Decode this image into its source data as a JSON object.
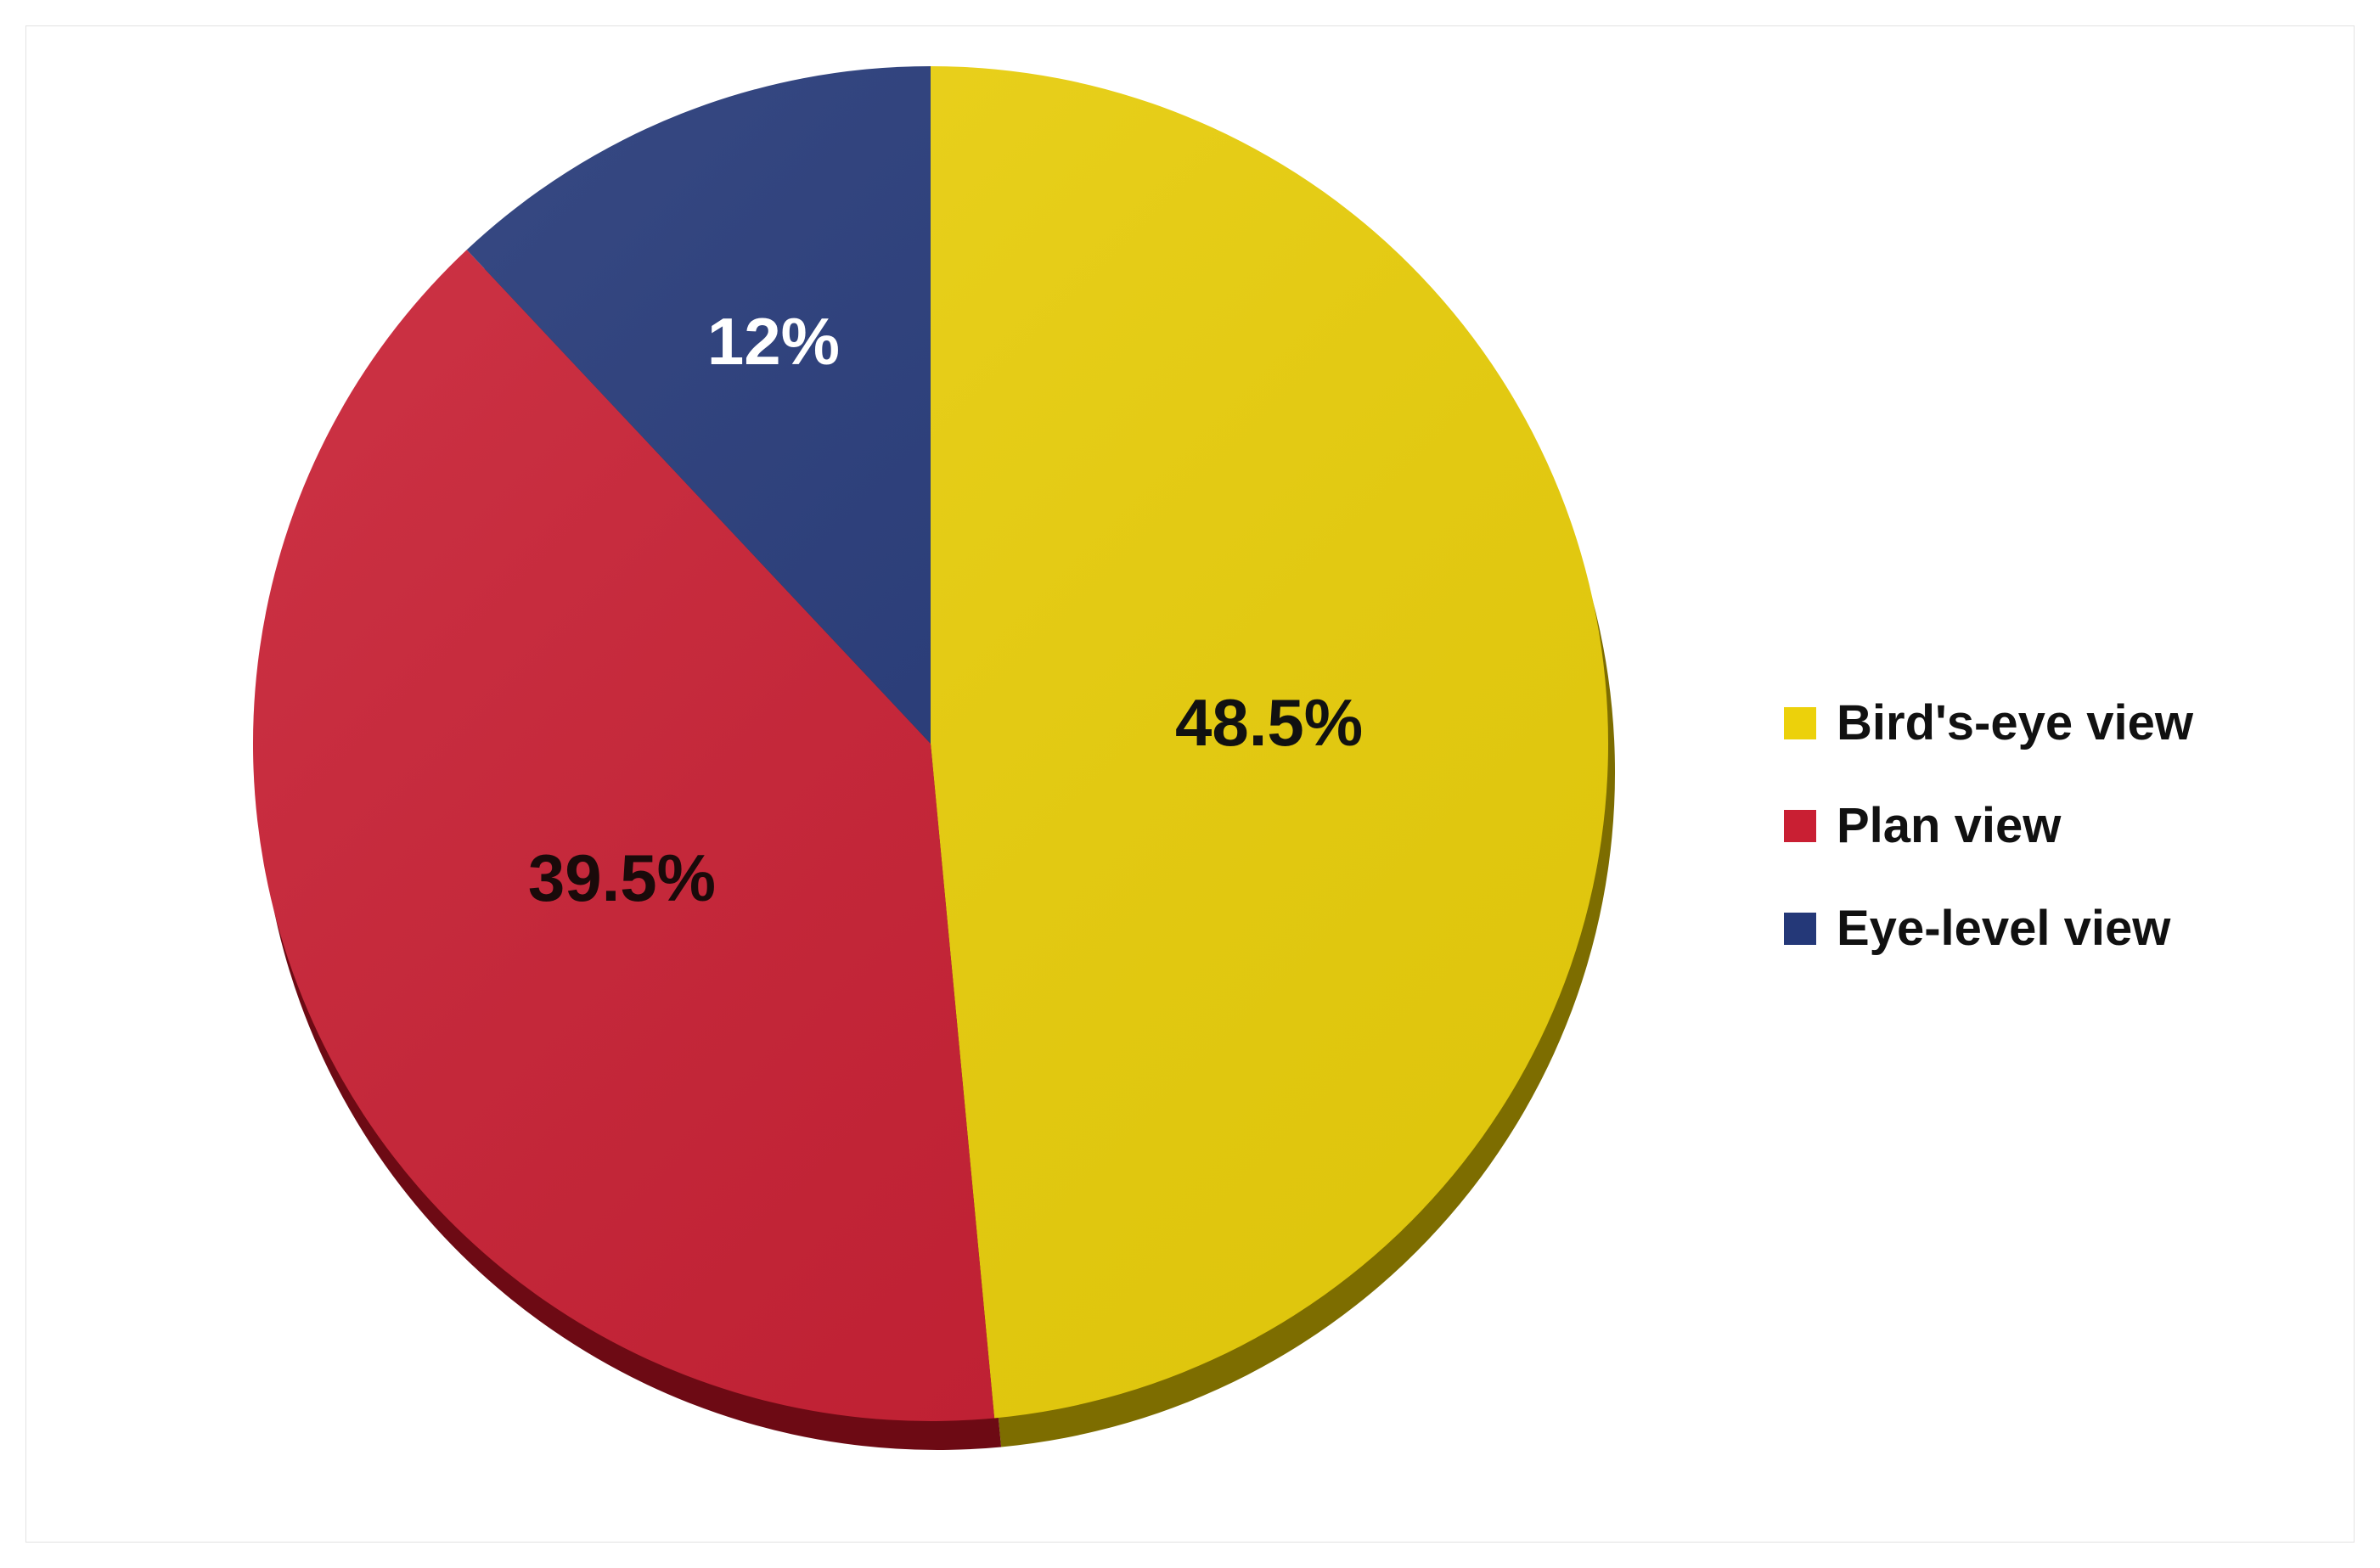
{
  "chart_data": {
    "type": "pie",
    "categories": [
      "Bird's-eye view",
      "Plan view",
      "Eye-level view"
    ],
    "values": [
      48.5,
      39.5,
      12
    ],
    "data_labels": [
      "48.5%",
      "39.5%",
      "12%"
    ],
    "colors": [
      "#ecd10b",
      "#c91f33",
      "#243878"
    ],
    "shadow_colors": [
      "#7d6d00",
      "#6d0a14",
      "#101c44"
    ],
    "label_colors": [
      "#111111",
      "#1a0a0a",
      "#ffffff"
    ],
    "legend_position": "right",
    "start_angle": "12 o'clock",
    "direction": "clockwise"
  }
}
